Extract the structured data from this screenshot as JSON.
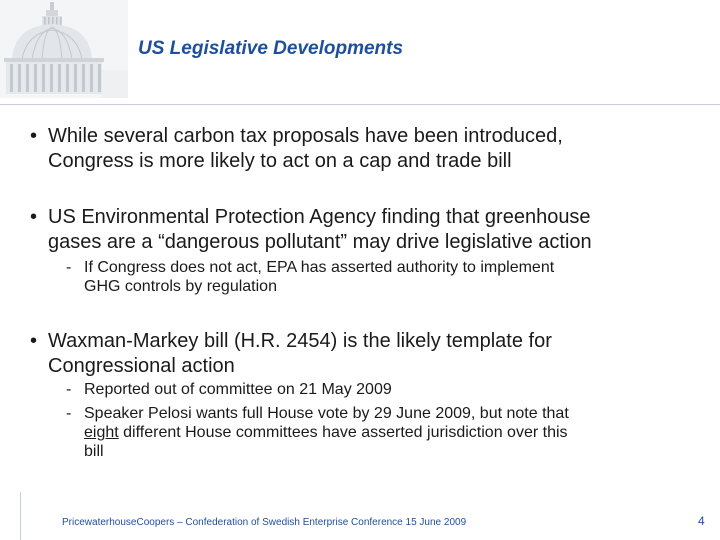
{
  "slide": {
    "title": "US Legislative Developments",
    "bullets": [
      {
        "lines": [
          "While several carbon tax proposals have been introduced,",
          "Congress is more likely to act on a cap and trade bill"
        ]
      },
      {
        "lines": [
          "US Environmental Protection Agency finding that greenhouse",
          "gases are a “dangerous pollutant” may drive legislative action"
        ],
        "subs": [
          {
            "lines": [
              "If Congress does not act, EPA has asserted authority to implement",
              "GHG controls by regulation"
            ]
          }
        ]
      },
      {
        "lines": [
          "Waxman-Markey bill (H.R. 2454) is the likely template for",
          "Congressional action"
        ],
        "subs": [
          {
            "lines": [
              "Reported out of committee on 21 May 2009"
            ]
          },
          {
            "lines": [
              "Speaker Pelosi wants full House vote by 29 June 2009, but note that",
              "different House committees have asserted jurisdiction over this",
              "bill"
            ],
            "underlined_word": "eight"
          }
        ]
      }
    ],
    "bullet_symbol": "•",
    "sub_symbol": "-",
    "footer": "PricewaterhouseCoopers – Confederation of Swedish Enterprise Conference 15 June 2009",
    "page_number": "4"
  },
  "colors": {
    "title": "#1f4f9c",
    "text": "#1a1a1a",
    "rule": "#c6cfd9"
  },
  "icons": {
    "header_image": "capitol-dome-icon"
  }
}
